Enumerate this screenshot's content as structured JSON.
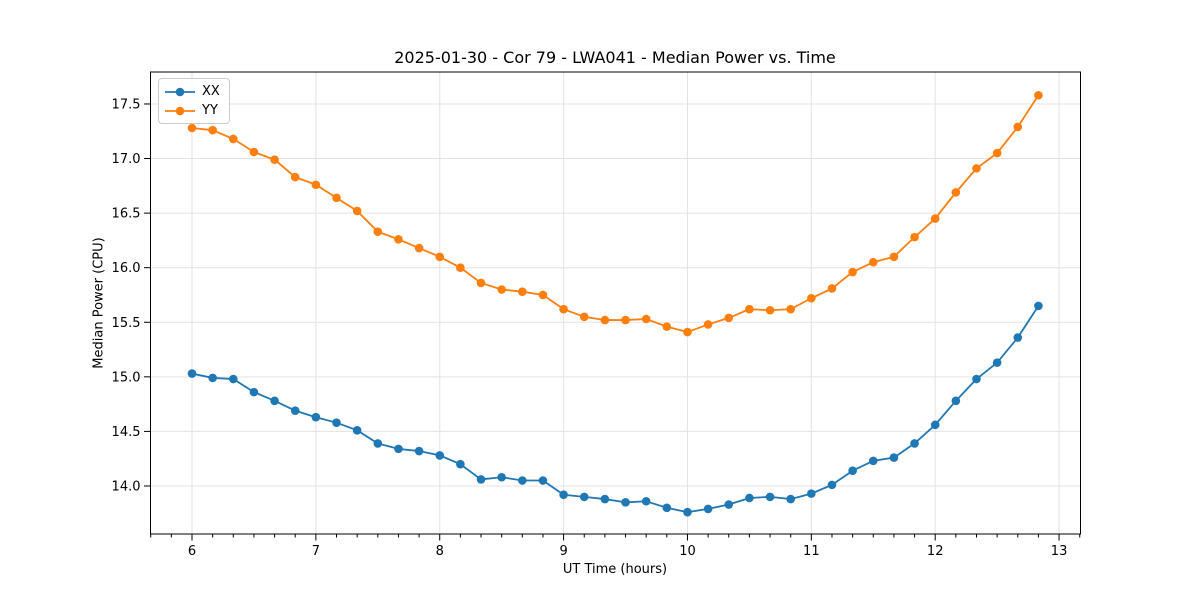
{
  "chart_data": {
    "type": "line",
    "title": "2025-01-30 - Cor 79 - LWA041 - Median Power vs. Time",
    "xlabel": "UT Time (hours)",
    "ylabel": "Median Power (CPU)",
    "x": [
      6.0,
      6.1667,
      6.3333,
      6.5,
      6.6667,
      6.8333,
      7.0,
      7.1667,
      7.3333,
      7.5,
      7.6667,
      7.8333,
      8.0,
      8.1667,
      8.3333,
      8.5,
      8.6667,
      8.8333,
      9.0,
      9.1667,
      9.3333,
      9.5,
      9.6667,
      9.8333,
      10.0,
      10.1667,
      10.3333,
      10.5,
      10.6667,
      10.8333,
      11.0,
      11.1667,
      11.3333,
      11.5,
      11.6667,
      11.8333,
      12.0,
      12.1667,
      12.3333,
      12.5,
      12.6667,
      12.8333
    ],
    "series": [
      {
        "name": "XX",
        "color": "#1f77b4",
        "values": [
          15.03,
          14.99,
          14.98,
          14.86,
          14.78,
          14.69,
          14.63,
          14.58,
          14.51,
          14.39,
          14.34,
          14.32,
          14.28,
          14.2,
          14.06,
          14.08,
          14.05,
          14.05,
          13.92,
          13.9,
          13.88,
          13.85,
          13.86,
          13.8,
          13.76,
          13.79,
          13.83,
          13.89,
          13.9,
          13.88,
          13.93,
          14.01,
          14.14,
          14.23,
          14.26,
          14.39,
          14.56,
          14.78,
          14.98,
          15.13,
          15.36,
          15.65
        ]
      },
      {
        "name": "YY",
        "color": "#ff7f0e",
        "values": [
          17.28,
          17.26,
          17.18,
          17.06,
          16.99,
          16.83,
          16.76,
          16.64,
          16.52,
          16.33,
          16.26,
          16.18,
          16.1,
          16.0,
          15.86,
          15.8,
          15.78,
          15.75,
          15.62,
          15.55,
          15.52,
          15.52,
          15.53,
          15.46,
          15.41,
          15.48,
          15.54,
          15.62,
          15.61,
          15.62,
          15.72,
          15.81,
          15.96,
          16.05,
          16.1,
          16.28,
          16.45,
          16.69,
          16.91,
          17.05,
          17.29,
          17.58
        ]
      }
    ],
    "xlim": [
      5.665,
      13.173
    ],
    "ylim": [
      13.56,
      17.793
    ],
    "xticks": [
      6,
      7,
      8,
      9,
      10,
      11,
      12,
      13
    ],
    "xtick_labels": [
      "6",
      "7",
      "8",
      "9",
      "10",
      "11",
      "12",
      "13"
    ],
    "yticks": [
      14.0,
      14.5,
      15.0,
      15.5,
      16.0,
      16.5,
      17.0,
      17.5
    ],
    "ytick_labels": [
      "14.0",
      "14.5",
      "15.0",
      "15.5",
      "16.0",
      "16.5",
      "17.0",
      "17.5"
    ],
    "x_minor_divisions": 6,
    "grid": true,
    "legend": {
      "position": "upper left",
      "entries": [
        "XX",
        "YY"
      ]
    },
    "styles": {
      "grid_color": "#e3e3e3",
      "spine_color": "#000000",
      "tick_color": "#000000",
      "marker_radius": 4.3,
      "line_width": 1.8
    }
  }
}
